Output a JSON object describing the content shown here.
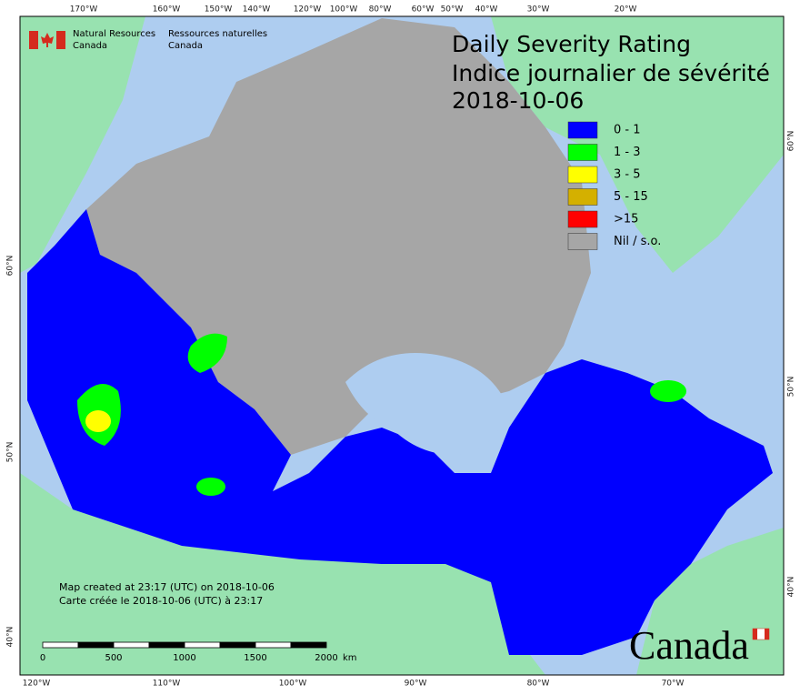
{
  "header": {
    "org_en": [
      "Natural Resources",
      "Canada"
    ],
    "org_fr": [
      "Ressources naturelles",
      "Canada"
    ]
  },
  "title": {
    "line1": "Daily Severity Rating",
    "line2": "Indice journalier de sévérité",
    "date": "2018-10-06"
  },
  "legend": [
    {
      "label": "0 - 1",
      "color": "#0000ff"
    },
    {
      "label": "1 - 3",
      "color": "#00ff00"
    },
    {
      "label": "3 - 5",
      "color": "#ffff00"
    },
    {
      "label": "5 - 15",
      "color": "#d4b000"
    },
    {
      "label": ">15",
      "color": "#ff0000"
    },
    {
      "label": "Nil / s.o.",
      "color": "#a6a6a6"
    }
  ],
  "graticule": {
    "top": [
      "170°W",
      "160°W",
      "150°W",
      "140°W",
      "120°W",
      "100°W",
      "80°W",
      "60°W",
      "50°W",
      "40°W",
      "30°W",
      "20°W"
    ],
    "bottom": [
      "120°W",
      "110°W",
      "100°W",
      "90°W",
      "80°W",
      "70°W"
    ],
    "left": [
      "60°N",
      "50°N",
      "40°N"
    ],
    "right": [
      "60°N",
      "50°N",
      "40°N"
    ]
  },
  "notes": [
    "Map created at 23:17 (UTC) on 2018-10-06",
    "Carte créée le 2018-10-06 (UTC) à 23:17"
  ],
  "scale_bar": {
    "ticks": [
      "0",
      "500",
      "1000",
      "1500",
      "2000"
    ],
    "unit": "km"
  },
  "wordmark": "Canada"
}
